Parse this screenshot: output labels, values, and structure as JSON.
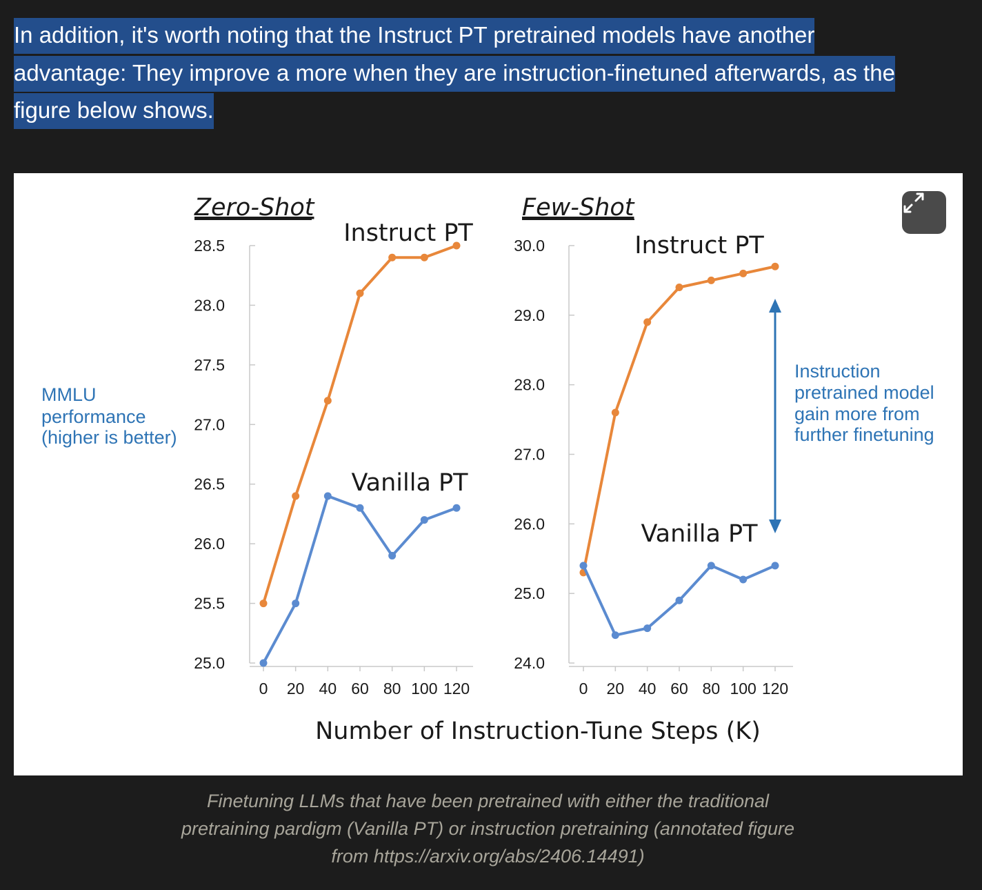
{
  "paragraph": {
    "lines": [
      "In addition, it's worth noting that the Instruct PT pretrained models have another",
      "advantage: They improve a more when they are instruction-finetuned afterwards, as the",
      "figure below shows."
    ]
  },
  "figure": {
    "expand_icon": "expand-arrows-icon",
    "y_axis_annotation": [
      "MMLU",
      "performance",
      "(higher is better)"
    ],
    "shared_x_label": "Number of Instruction-Tune Steps (K)",
    "side_annotation": [
      "Instruction",
      "pretrained model",
      "gain more from",
      "further finetuning"
    ],
    "colors": {
      "instruct": "#e8873a",
      "vanilla": "#5b8bd0",
      "annotation": "#2e74b5"
    }
  },
  "chart_data": [
    {
      "type": "line",
      "title": "Zero-Shot",
      "x": [
        0,
        20,
        40,
        60,
        80,
        100,
        120
      ],
      "x_ticks": [
        "0",
        "20",
        "40",
        "60",
        "80",
        "100",
        "120"
      ],
      "y_ticks": [
        "25.0",
        "25.5",
        "26.0",
        "26.5",
        "27.0",
        "27.5",
        "28.0",
        "28.5"
      ],
      "ylim": [
        25.0,
        28.5
      ],
      "grid": false,
      "series": [
        {
          "name": "Instruct PT",
          "values": [
            25.5,
            26.4,
            27.2,
            28.1,
            28.4,
            28.4,
            28.5
          ]
        },
        {
          "name": "Vanilla PT",
          "values": [
            25.0,
            25.5,
            26.4,
            26.3,
            25.9,
            26.2,
            26.3
          ]
        }
      ]
    },
    {
      "type": "line",
      "title": "Few-Shot",
      "x": [
        0,
        20,
        40,
        60,
        80,
        100,
        120
      ],
      "x_ticks": [
        "0",
        "20",
        "40",
        "60",
        "80",
        "100",
        "120"
      ],
      "y_ticks": [
        "24.0",
        "25.0",
        "26.0",
        "27.0",
        "28.0",
        "29.0",
        "30.0"
      ],
      "ylim": [
        24.0,
        30.0
      ],
      "grid": false,
      "series": [
        {
          "name": "Instruct PT",
          "values": [
            25.3,
            27.6,
            28.9,
            29.4,
            29.5,
            29.6,
            29.7
          ]
        },
        {
          "name": "Vanilla PT",
          "values": [
            25.4,
            24.4,
            24.5,
            24.9,
            25.4,
            25.2,
            25.4
          ]
        }
      ]
    }
  ],
  "caption": {
    "lines": [
      "Finetuning LLMs that have been pretrained with either the traditional",
      "pretraining pardigm (Vanilla PT) or instruction pretraining (annotated figure",
      "from https://arxiv.org/abs/2406.14491)"
    ]
  }
}
